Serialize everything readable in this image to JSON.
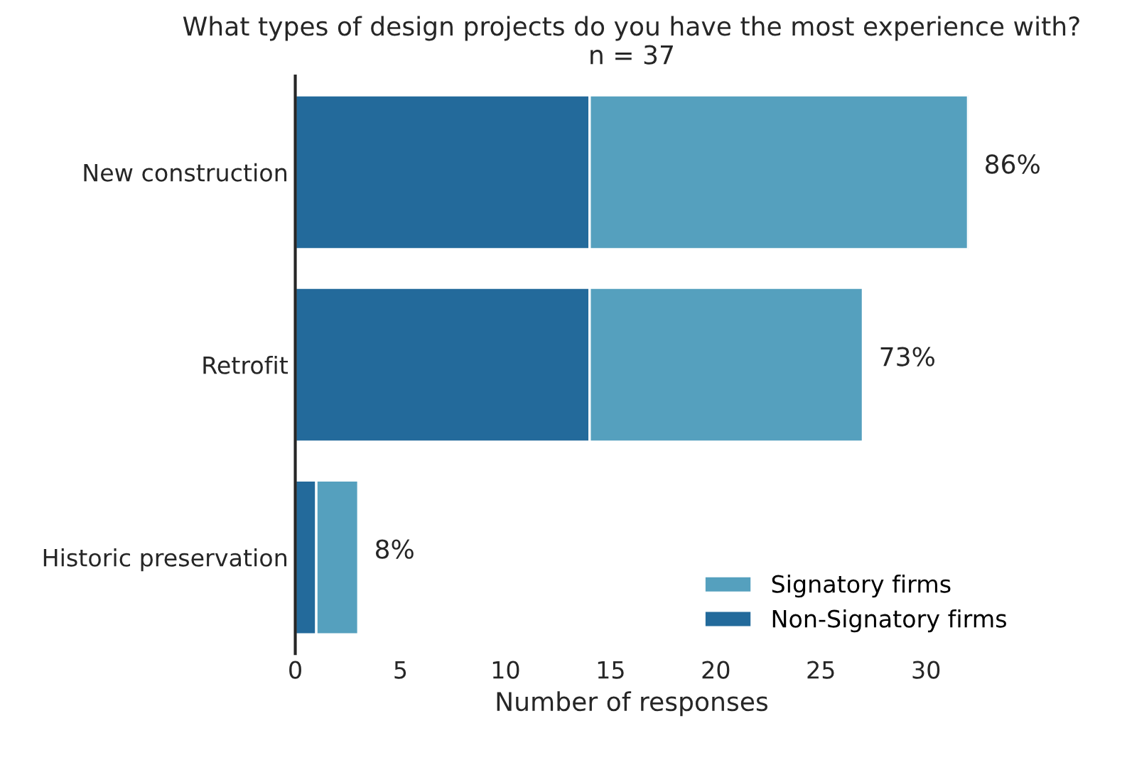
{
  "chart_data": {
    "type": "bar",
    "orientation": "horizontal",
    "stacked": true,
    "title": "What types of design projects do you have the most experience with?",
    "subtitle": "n = 37",
    "xlabel": "Number of responses",
    "categories": [
      "New construction",
      "Retrofit",
      "Historic preservation"
    ],
    "series": [
      {
        "name": "Non-Signatory firms",
        "color": "#236a9b",
        "values": [
          14,
          14,
          1
        ]
      },
      {
        "name": "Signatory firms",
        "color": "#55a0be",
        "values": [
          18,
          13,
          2
        ]
      }
    ],
    "annotations": [
      {
        "text": "86%",
        "x": 32,
        "y": "New construction"
      },
      {
        "text": "73%",
        "x": 27,
        "y": "Retrofit"
      },
      {
        "text": "8%",
        "x": 3,
        "y": "Historic preservation"
      }
    ],
    "xlim": [
      0,
      32
    ],
    "xticks": [
      0,
      5,
      10,
      15,
      20,
      25,
      30
    ],
    "grid": false,
    "legend": "bottom right"
  }
}
